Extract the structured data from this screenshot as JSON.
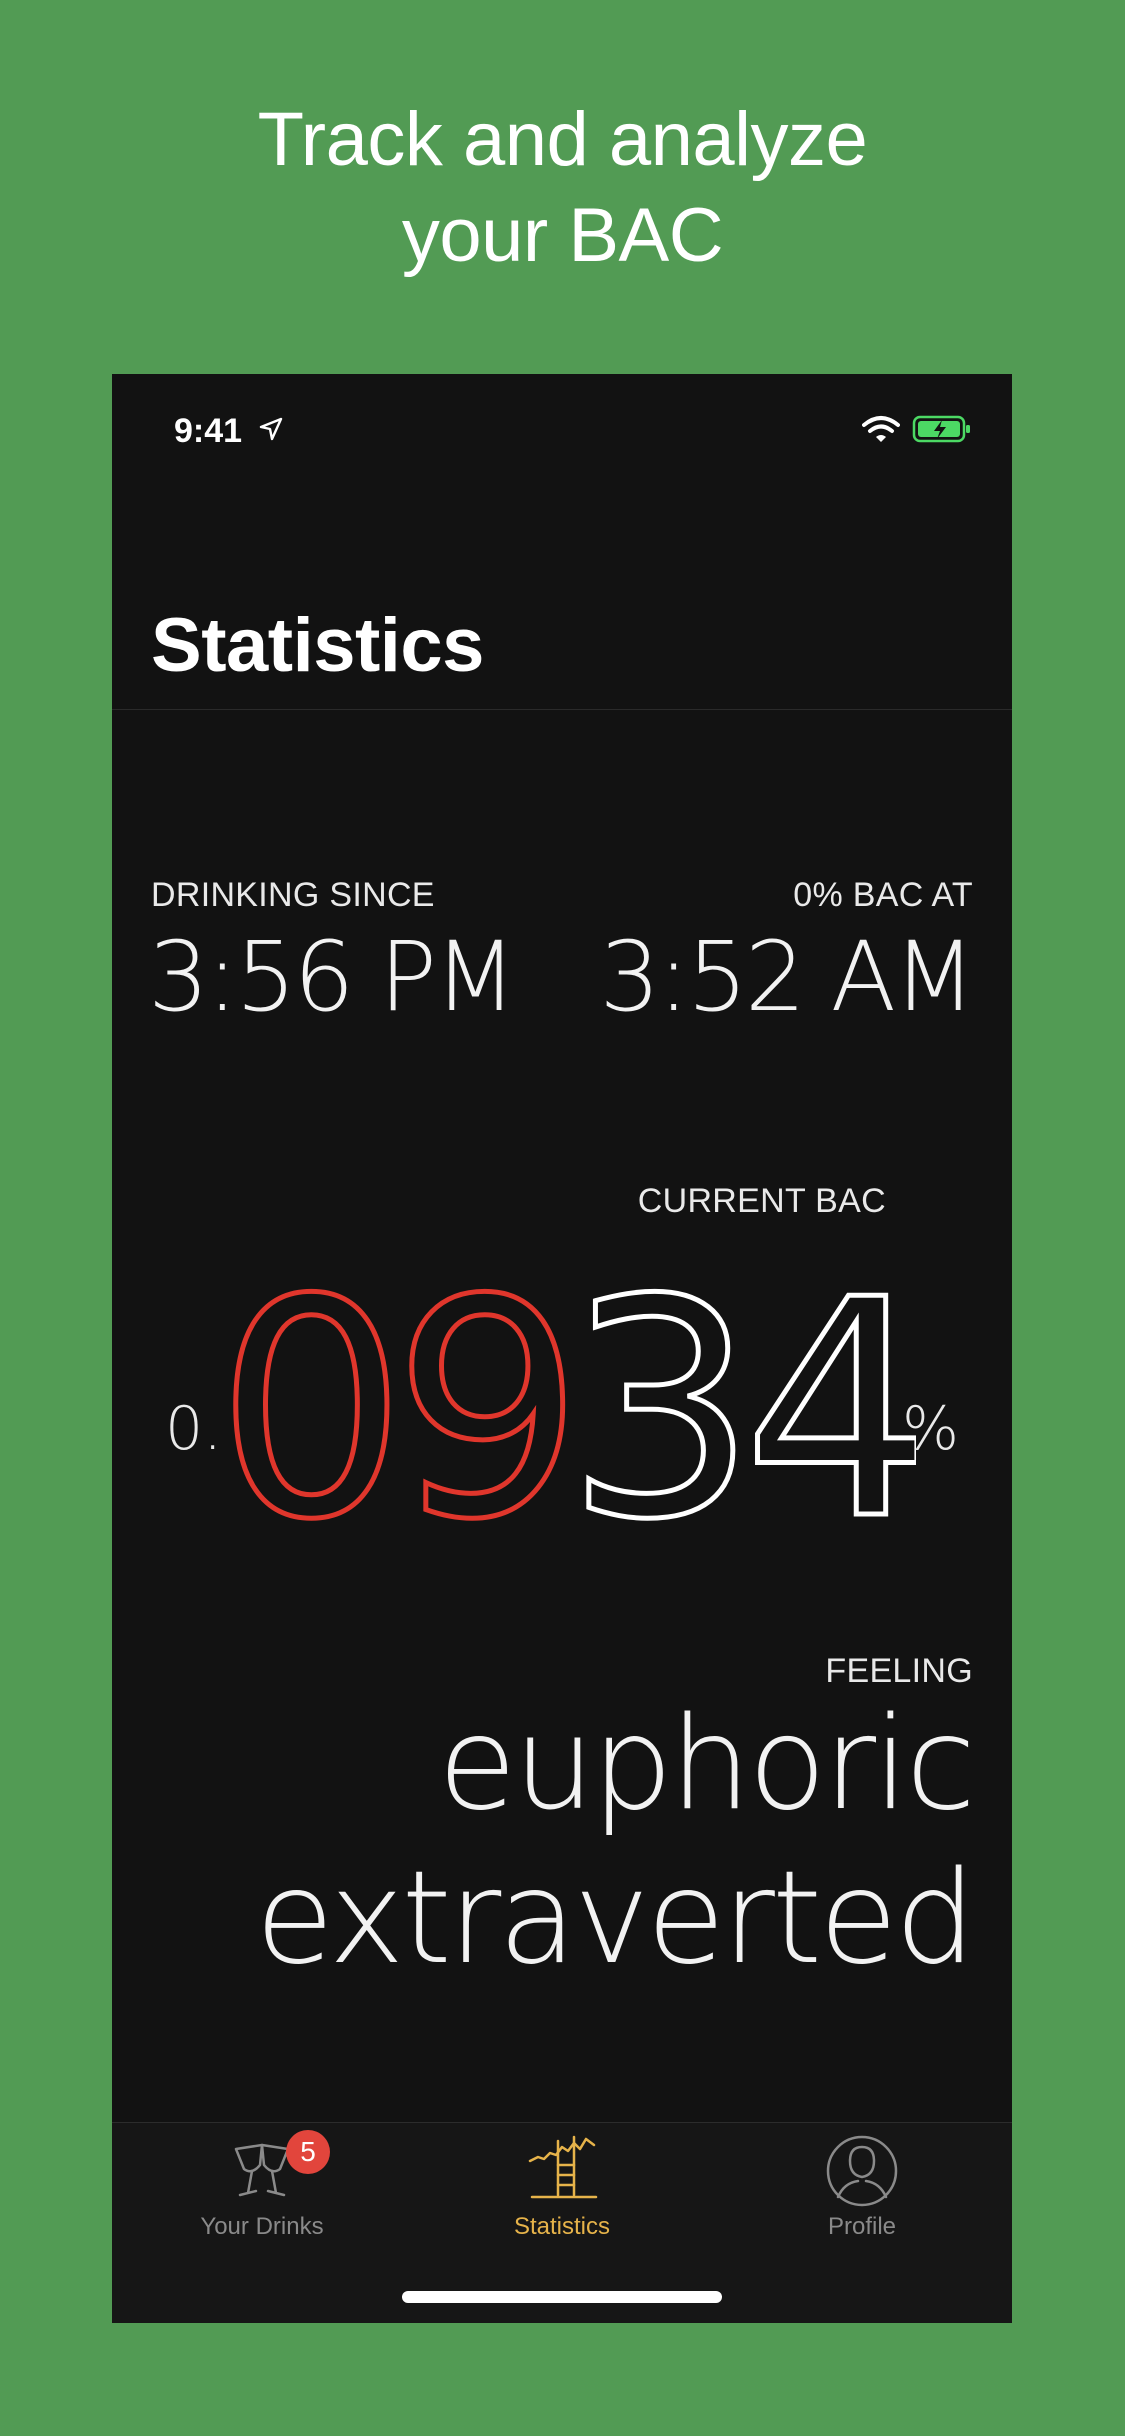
{
  "headline": {
    "line1": "Track and analyze",
    "line2": "your BAC"
  },
  "status_bar": {
    "time": "9:41",
    "icons": [
      "location-arrow-icon",
      "wifi-icon",
      "battery-charging-icon"
    ]
  },
  "page": {
    "title": "Statistics"
  },
  "drinking_since": {
    "label": "DRINKING SINCE",
    "value": "3:56 PM"
  },
  "zero_bac": {
    "label": "0% BAC AT",
    "value": "3:52 AM"
  },
  "bac": {
    "label": "CURRENT BAC",
    "prefix": "0.",
    "digits_red": "09",
    "digits_white": "34",
    "suffix": "%",
    "red_color": "#e0362c"
  },
  "feeling": {
    "label": "FEELING",
    "words": [
      "euphoric",
      "extraverted"
    ]
  },
  "tabs": [
    {
      "label": "Your Drinks",
      "icon": "wine-glasses-icon",
      "badge": "5",
      "active": false
    },
    {
      "label": "Statistics",
      "icon": "chart-icon",
      "active": true
    },
    {
      "label": "Profile",
      "icon": "user-icon",
      "active": false
    }
  ],
  "colors": {
    "background": "#529b54",
    "screen": "#121212",
    "accent": "#e6b34a",
    "badge": "#e2453c"
  }
}
